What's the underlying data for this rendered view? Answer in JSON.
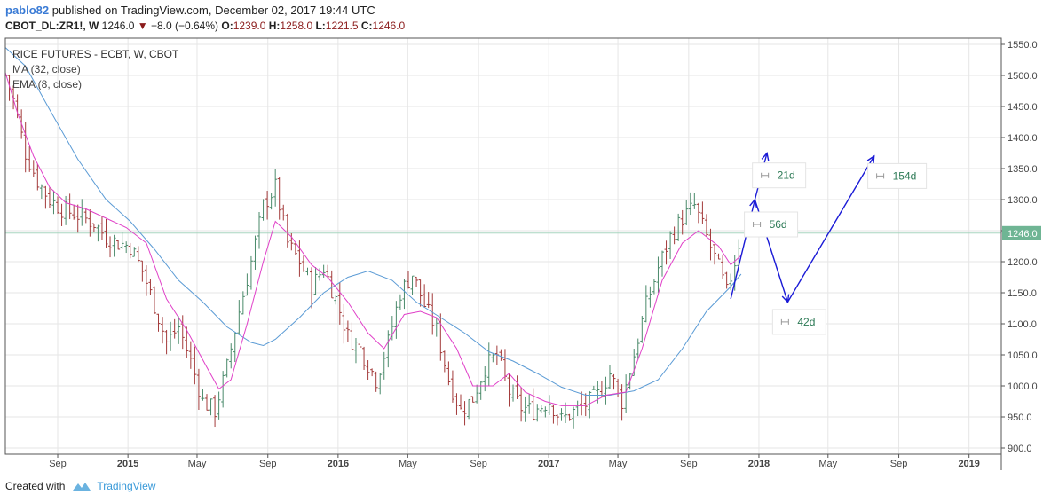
{
  "header": {
    "author": "pablo82",
    "published": "published on TradingView.com, December 02, 2017 19:44 UTC",
    "symbol": "CBOT_DL:ZR1!, W",
    "price": "1246.0",
    "change": "−8.0 (−0.64%)",
    "open_label": "O:",
    "open": "1239.0",
    "high_label": "H:",
    "high": "1258.0",
    "low_label": "L:",
    "low": "1221.5",
    "close_label": "C:",
    "close": "1246.0"
  },
  "legend": {
    "title": "RICE FUTURES - ECBT, W, CBOT",
    "ma": "MA (32, close)",
    "ema": "EMA (8, close)"
  },
  "footer": {
    "created_with": "Created with",
    "brand": "TradingView"
  },
  "colors": {
    "up": "#4a8a6a",
    "down": "#a33a3a",
    "ma": "#5b9bd5",
    "ema": "#e040c8",
    "arrow": "#1a1ad6",
    "grid": "#e6e6e6",
    "last_price_bg": "#6fb594",
    "hline": "#a8d5c0"
  },
  "chart_data": {
    "type": "candlestick",
    "title": "RICE FUTURES - ECBT, W, CBOT",
    "ylim": [
      890,
      1560
    ],
    "yticks": [
      900.0,
      950.0,
      1000.0,
      1050.0,
      1100.0,
      1150.0,
      1200.0,
      1250.0,
      1300.0,
      1350.0,
      1400.0,
      1450.0,
      1500.0,
      1550.0
    ],
    "xticks": [
      {
        "label": "Sep",
        "date": "2014-09-01",
        "bold": false
      },
      {
        "label": "2015",
        "date": "2015-01-01",
        "bold": true
      },
      {
        "label": "May",
        "date": "2015-05-01",
        "bold": false
      },
      {
        "label": "Sep",
        "date": "2015-09-01",
        "bold": false
      },
      {
        "label": "2016",
        "date": "2016-01-01",
        "bold": true
      },
      {
        "label": "May",
        "date": "2016-05-01",
        "bold": false
      },
      {
        "label": "Sep",
        "date": "2016-09-01",
        "bold": false
      },
      {
        "label": "2017",
        "date": "2017-01-01",
        "bold": true
      },
      {
        "label": "May",
        "date": "2017-05-01",
        "bold": false
      },
      {
        "label": "Sep",
        "date": "2017-09-01",
        "bold": false
      },
      {
        "label": "2018",
        "date": "2018-01-01",
        "bold": true
      },
      {
        "label": "May",
        "date": "2018-05-01",
        "bold": false
      },
      {
        "label": "Sep",
        "date": "2018-09-01",
        "bold": false
      },
      {
        "label": "2019",
        "date": "2019-01-01",
        "bold": true
      }
    ],
    "last_price": 1246.0,
    "price_path": [
      [
        "2014-06-02",
        1500
      ],
      [
        "2014-06-16",
        1460
      ],
      [
        "2014-07-07",
        1375
      ],
      [
        "2014-07-28",
        1330
      ],
      [
        "2014-08-18",
        1300
      ],
      [
        "2014-09-08",
        1285
      ],
      [
        "2014-10-06",
        1275
      ],
      [
        "2014-11-03",
        1262
      ],
      [
        "2014-11-24",
        1240
      ],
      [
        "2014-12-15",
        1230
      ],
      [
        "2015-01-05",
        1225
      ],
      [
        "2015-01-26",
        1185
      ],
      [
        "2015-02-16",
        1130
      ],
      [
        "2015-03-09",
        1070
      ],
      [
        "2015-03-30",
        1095
      ],
      [
        "2015-04-20",
        1040
      ],
      [
        "2015-05-11",
        975
      ],
      [
        "2015-06-01",
        960
      ],
      [
        "2015-06-22",
        1030
      ],
      [
        "2015-07-13",
        1120
      ],
      [
        "2015-08-03",
        1200
      ],
      [
        "2015-08-24",
        1290
      ],
      [
        "2015-09-14",
        1320
      ],
      [
        "2015-10-05",
        1230
      ],
      [
        "2015-10-26",
        1200
      ],
      [
        "2015-11-16",
        1160
      ],
      [
        "2015-12-07",
        1190
      ],
      [
        "2015-12-28",
        1140
      ],
      [
        "2016-01-18",
        1080
      ],
      [
        "2016-02-08",
        1060
      ],
      [
        "2016-03-07",
        1010
      ],
      [
        "2016-03-28",
        1070
      ],
      [
        "2016-04-18",
        1150
      ],
      [
        "2016-05-09",
        1180
      ],
      [
        "2016-05-30",
        1130
      ],
      [
        "2016-06-20",
        1090
      ],
      [
        "2016-07-11",
        1010
      ],
      [
        "2016-08-01",
        960
      ],
      [
        "2016-08-22",
        980
      ],
      [
        "2016-09-12",
        1030
      ],
      [
        "2016-10-03",
        1050
      ],
      [
        "2016-10-24",
        990
      ],
      [
        "2016-11-14",
        965
      ],
      [
        "2016-12-05",
        960
      ],
      [
        "2017-01-02",
        975
      ],
      [
        "2017-01-23",
        945
      ],
      [
        "2017-02-13",
        958
      ],
      [
        "2017-03-06",
        970
      ],
      [
        "2017-03-27",
        985
      ],
      [
        "2017-04-17",
        1020
      ],
      [
        "2017-05-08",
        975
      ],
      [
        "2017-05-29",
        1050
      ],
      [
        "2017-06-19",
        1130
      ],
      [
        "2017-07-10",
        1190
      ],
      [
        "2017-07-31",
        1240
      ],
      [
        "2017-08-21",
        1270
      ],
      [
        "2017-09-11",
        1290
      ],
      [
        "2017-10-02",
        1240
      ],
      [
        "2017-10-23",
        1190
      ],
      [
        "2017-11-06",
        1150
      ],
      [
        "2017-11-20",
        1200
      ],
      [
        "2017-12-01",
        1246
      ]
    ],
    "ma_series": [
      [
        "2014-06-02",
        1545
      ],
      [
        "2014-07-07",
        1515
      ],
      [
        "2014-08-18",
        1445
      ],
      [
        "2014-10-06",
        1365
      ],
      [
        "2014-11-24",
        1300
      ],
      [
        "2015-01-05",
        1265
      ],
      [
        "2015-02-16",
        1220
      ],
      [
        "2015-03-30",
        1170
      ],
      [
        "2015-05-11",
        1135
      ],
      [
        "2015-06-22",
        1095
      ],
      [
        "2015-08-03",
        1070
      ],
      [
        "2015-08-24",
        1065
      ],
      [
        "2015-09-14",
        1075
      ],
      [
        "2015-10-26",
        1110
      ],
      [
        "2015-12-07",
        1150
      ],
      [
        "2016-01-18",
        1175
      ],
      [
        "2016-02-22",
        1185
      ],
      [
        "2016-04-04",
        1170
      ],
      [
        "2016-05-16",
        1135
      ],
      [
        "2016-06-27",
        1110
      ],
      [
        "2016-08-08",
        1085
      ],
      [
        "2016-09-19",
        1055
      ],
      [
        "2016-10-31",
        1040
      ],
      [
        "2016-12-12",
        1020
      ],
      [
        "2017-01-23",
        998
      ],
      [
        "2017-03-06",
        985
      ],
      [
        "2017-04-17",
        985
      ],
      [
        "2017-05-29",
        992
      ],
      [
        "2017-07-10",
        1010
      ],
      [
        "2017-08-21",
        1060
      ],
      [
        "2017-10-02",
        1120
      ],
      [
        "2017-11-13",
        1160
      ],
      [
        "2017-12-01",
        1180
      ]
    ],
    "ema_series": [
      [
        "2014-06-02",
        1505
      ],
      [
        "2014-06-23",
        1440
      ],
      [
        "2014-07-21",
        1370
      ],
      [
        "2014-08-18",
        1320
      ],
      [
        "2014-09-15",
        1295
      ],
      [
        "2014-10-20",
        1285
      ],
      [
        "2014-11-24",
        1270
      ],
      [
        "2014-12-29",
        1255
      ],
      [
        "2015-02-02",
        1230
      ],
      [
        "2015-03-09",
        1140
      ],
      [
        "2015-04-13",
        1090
      ],
      [
        "2015-05-18",
        1030
      ],
      [
        "2015-06-08",
        995
      ],
      [
        "2015-06-29",
        1010
      ],
      [
        "2015-07-27",
        1100
      ],
      [
        "2015-08-24",
        1200
      ],
      [
        "2015-09-14",
        1265
      ],
      [
        "2015-10-12",
        1240
      ],
      [
        "2015-11-16",
        1195
      ],
      [
        "2015-12-14",
        1175
      ],
      [
        "2016-01-18",
        1135
      ],
      [
        "2016-02-22",
        1085
      ],
      [
        "2016-03-21",
        1060
      ],
      [
        "2016-04-25",
        1115
      ],
      [
        "2016-05-23",
        1120
      ],
      [
        "2016-06-20",
        1110
      ],
      [
        "2016-07-25",
        1060
      ],
      [
        "2016-08-22",
        1000
      ],
      [
        "2016-09-26",
        1000
      ],
      [
        "2016-10-24",
        1020
      ],
      [
        "2016-11-21",
        990
      ],
      [
        "2016-12-26",
        975
      ],
      [
        "2017-01-23",
        968
      ],
      [
        "2017-03-06",
        968
      ],
      [
        "2017-04-10",
        985
      ],
      [
        "2017-05-15",
        990
      ],
      [
        "2017-06-12",
        1060
      ],
      [
        "2017-07-17",
        1170
      ],
      [
        "2017-08-21",
        1230
      ],
      [
        "2017-09-18",
        1250
      ],
      [
        "2017-10-23",
        1225
      ],
      [
        "2017-11-13",
        1195
      ],
      [
        "2017-12-01",
        1210
      ]
    ],
    "projection": [
      [
        "2017-11-13",
        1140
      ],
      [
        "2017-12-25",
        1300
      ],
      [
        "2018-01-15",
        1375
      ],
      [
        "2017-12-25",
        1300
      ],
      [
        "2018-02-20",
        1135
      ],
      [
        "2018-07-20",
        1370
      ]
    ],
    "date_ranges": [
      {
        "label": "21d",
        "date": "2018-02-05",
        "value": 1339
      },
      {
        "label": "56d",
        "date": "2018-01-22",
        "value": 1260
      },
      {
        "label": "42d",
        "date": "2018-03-12",
        "value": 1103
      },
      {
        "label": "154d",
        "date": "2018-08-29",
        "value": 1338
      }
    ]
  }
}
